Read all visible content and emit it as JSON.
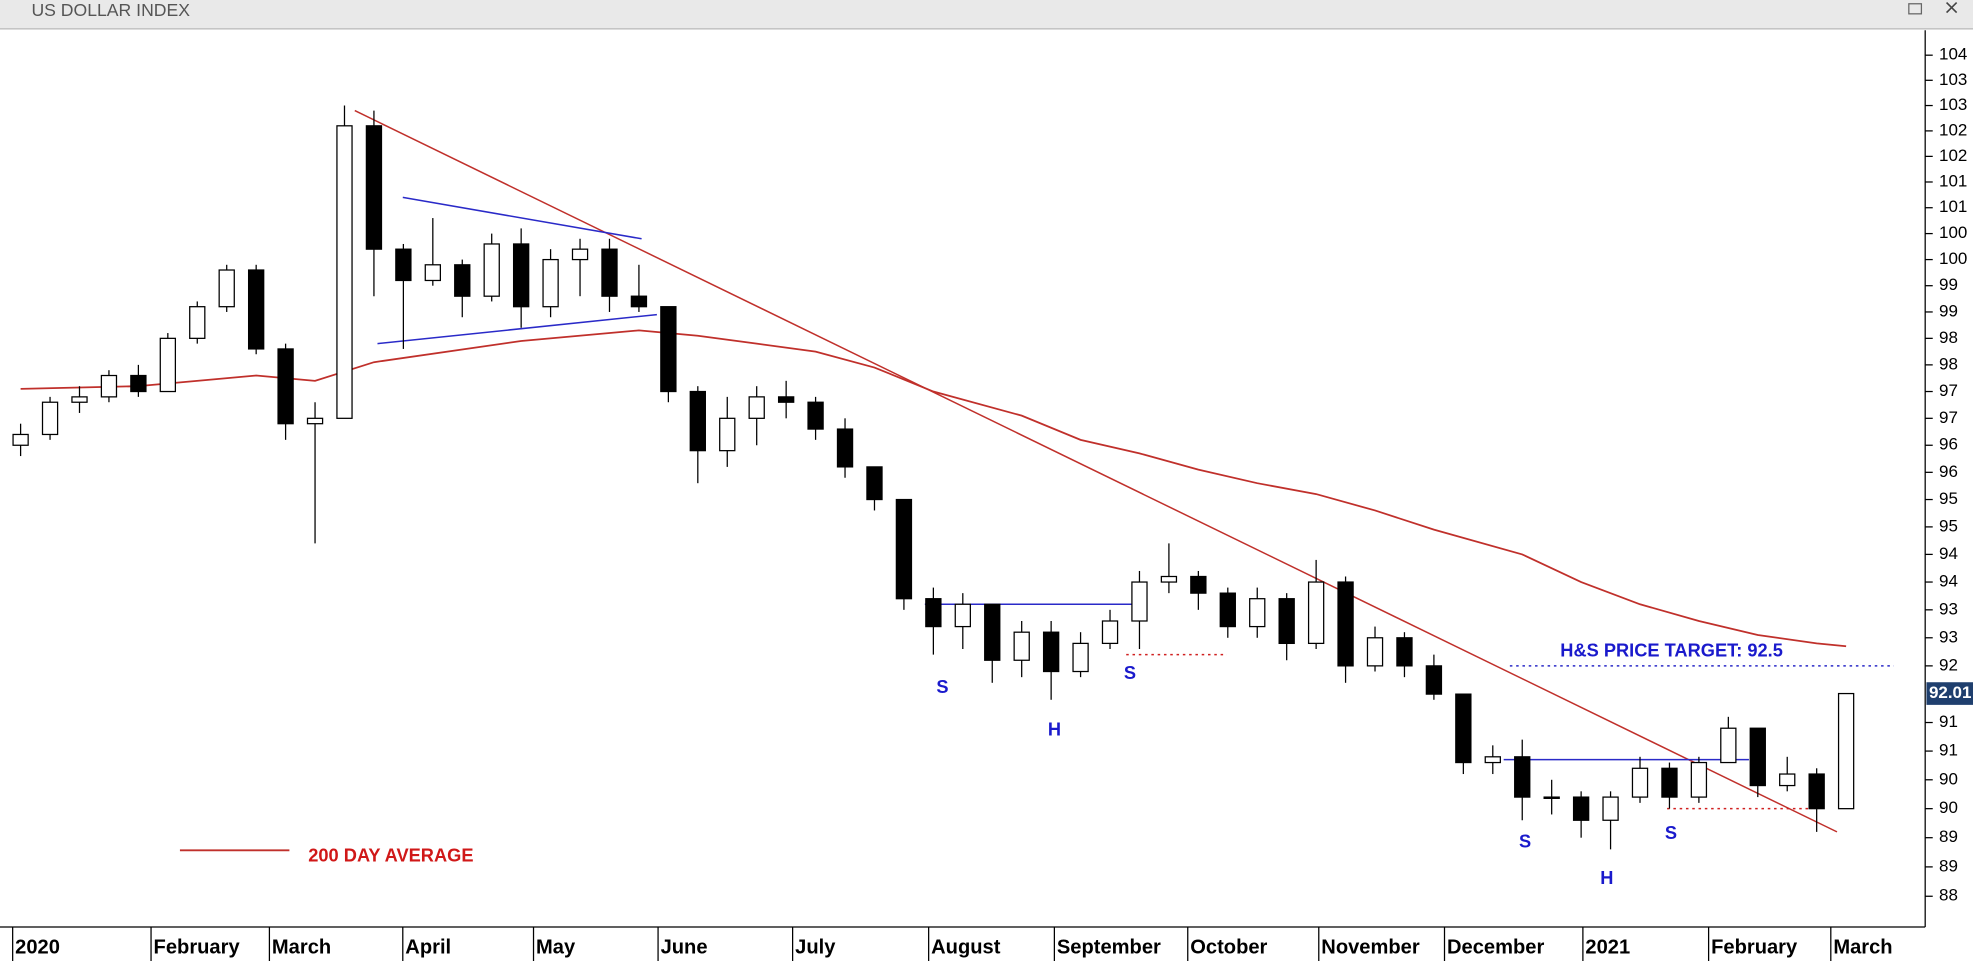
{
  "chart_data": {
    "type": "candlestick",
    "title": "US DOLLAR INDEX",
    "log_scale": true,
    "ylim": [
      88,
      104.5
    ],
    "yticks": [
      104,
      {
        "value": 103.5,
        "label": "103"
      },
      103,
      {
        "value": 102.5,
        "label": "102"
      },
      102,
      {
        "value": 101.5,
        "label": "101"
      },
      101,
      {
        "value": 100.5,
        "label": "100"
      },
      100,
      {
        "value": 99.5,
        "label": "99"
      },
      99,
      {
        "value": 98.5,
        "label": "98"
      },
      98,
      {
        "value": 97.5,
        "label": "97"
      },
      97,
      {
        "value": 96.5,
        "label": "96"
      },
      96,
      {
        "value": 95.5,
        "label": "95"
      },
      95,
      {
        "value": 94.5,
        "label": "94"
      },
      94,
      {
        "value": 93.5,
        "label": "93"
      },
      93,
      {
        "value": 92.5,
        "label": "92"
      },
      {
        "value": 91.5,
        "label": "91"
      },
      91,
      {
        "value": 90.5,
        "label": "90"
      },
      90,
      {
        "value": 89.5,
        "label": "89"
      },
      89,
      {
        "value": 88.5,
        "label": "88"
      }
    ],
    "xlim": [
      -0.7,
      64.6
    ],
    "xticks": [
      {
        "value": -0.27,
        "label": "2020"
      },
      {
        "value": 4.43,
        "label": "February"
      },
      {
        "value": 8.45,
        "label": "March"
      },
      {
        "value": 12.98,
        "label": "April"
      },
      {
        "value": 17.42,
        "label": "May"
      },
      {
        "value": 21.65,
        "label": "June"
      },
      {
        "value": 26.22,
        "label": "July"
      },
      {
        "value": 30.84,
        "label": "August"
      },
      {
        "value": 35.11,
        "label": "September"
      },
      {
        "value": 39.64,
        "label": "October"
      },
      {
        "value": 44.09,
        "label": "November"
      },
      {
        "value": 48.36,
        "label": "December"
      },
      {
        "value": 53.06,
        "label": "2021"
      },
      {
        "value": 57.33,
        "label": "February"
      },
      {
        "value": 61.48,
        "label": "March"
      }
    ],
    "candles": [
      [
        96.5,
        96.9,
        96.3,
        96.7
      ],
      [
        96.7,
        97.4,
        96.6,
        97.3
      ],
      [
        97.3,
        97.6,
        97.1,
        97.4
      ],
      [
        97.4,
        97.9,
        97.3,
        97.8
      ],
      [
        97.8,
        98.0,
        97.4,
        97.5
      ],
      [
        97.5,
        98.6,
        97.5,
        98.5
      ],
      [
        98.5,
        99.2,
        98.4,
        99.1
      ],
      [
        99.1,
        99.9,
        99.0,
        99.8
      ],
      [
        99.8,
        99.9,
        98.2,
        98.3
      ],
      [
        98.3,
        98.4,
        96.6,
        96.9
      ],
      [
        96.9,
        97.3,
        94.7,
        97.0
      ],
      [
        97.0,
        103.0,
        97.0,
        102.6
      ],
      [
        102.6,
        102.9,
        99.3,
        100.2
      ],
      [
        100.2,
        100.3,
        98.3,
        99.6
      ],
      [
        99.6,
        100.8,
        99.5,
        99.9
      ],
      [
        99.9,
        100.0,
        98.9,
        99.3
      ],
      [
        99.3,
        100.5,
        99.2,
        100.3
      ],
      [
        100.3,
        100.6,
        98.7,
        99.1
      ],
      [
        99.1,
        100.2,
        98.9,
        100.0
      ],
      [
        100.0,
        100.4,
        99.3,
        100.2
      ],
      [
        100.2,
        100.4,
        99.0,
        99.3
      ],
      [
        99.3,
        99.9,
        99.0,
        99.1
      ],
      [
        99.1,
        99.1,
        97.3,
        97.5
      ],
      [
        97.5,
        97.6,
        95.8,
        96.4
      ],
      [
        96.4,
        97.4,
        96.1,
        97.0
      ],
      [
        97.0,
        97.6,
        96.5,
        97.4
      ],
      [
        97.4,
        97.7,
        97.0,
        97.3
      ],
      [
        97.3,
        97.4,
        96.6,
        96.8
      ],
      [
        96.8,
        97.0,
        95.9,
        96.1
      ],
      [
        96.1,
        96.1,
        95.3,
        95.5
      ],
      [
        95.5,
        95.5,
        93.5,
        93.7
      ],
      [
        93.7,
        93.9,
        92.7,
        93.2
      ],
      [
        93.2,
        93.8,
        92.8,
        93.6
      ],
      [
        93.6,
        93.6,
        92.2,
        92.6
      ],
      [
        92.6,
        93.3,
        92.3,
        93.1
      ],
      [
        93.1,
        93.3,
        91.9,
        92.4
      ],
      [
        92.4,
        93.1,
        92.3,
        92.9
      ],
      [
        92.9,
        93.5,
        92.8,
        93.3
      ],
      [
        93.3,
        94.2,
        92.8,
        94.0
      ],
      [
        94.0,
        94.7,
        93.8,
        94.1
      ],
      [
        94.1,
        94.2,
        93.5,
        93.8
      ],
      [
        93.8,
        93.9,
        93.0,
        93.2
      ],
      [
        93.2,
        93.9,
        93.0,
        93.7
      ],
      [
        93.7,
        93.8,
        92.6,
        92.9
      ],
      [
        92.9,
        94.4,
        92.8,
        94.0
      ],
      [
        94.0,
        94.1,
        92.2,
        92.5
      ],
      [
        92.5,
        93.2,
        92.4,
        93.0
      ],
      [
        93.0,
        93.1,
        92.3,
        92.5
      ],
      [
        92.5,
        92.7,
        91.9,
        92.0
      ],
      [
        92.0,
        92.0,
        90.6,
        90.8
      ],
      [
        90.8,
        91.1,
        90.6,
        90.9
      ],
      [
        90.9,
        91.2,
        89.8,
        90.2
      ],
      [
        90.2,
        90.5,
        89.9,
        90.2
      ],
      [
        90.2,
        90.3,
        89.5,
        89.8
      ],
      [
        89.8,
        90.3,
        89.3,
        90.2
      ],
      [
        90.2,
        90.9,
        90.1,
        90.7
      ],
      [
        90.7,
        90.8,
        90.0,
        90.2
      ],
      [
        90.2,
        90.9,
        90.1,
        90.8
      ],
      [
        90.8,
        91.6,
        90.8,
        91.4
      ],
      [
        91.4,
        91.4,
        90.2,
        90.4
      ],
      [
        90.4,
        90.9,
        90.3,
        90.6
      ],
      [
        90.6,
        90.7,
        89.6,
        90.0
      ],
      [
        90.0,
        92.01,
        90.0,
        92.01
      ]
    ],
    "moving_average": {
      "name": "200 DAY AVERAGE",
      "color": "#c0302b",
      "x": [
        0,
        4,
        8,
        10,
        12,
        17,
        21,
        23,
        25,
        27,
        29,
        31,
        34,
        36,
        38,
        40,
        42,
        44,
        46,
        48,
        51,
        53,
        55,
        57,
        59,
        61,
        62
      ],
      "values": [
        97.55,
        97.6,
        97.8,
        97.7,
        98.05,
        98.45,
        98.65,
        98.55,
        98.4,
        98.25,
        97.95,
        97.5,
        97.05,
        96.6,
        96.35,
        96.05,
        95.8,
        95.6,
        95.3,
        94.95,
        94.5,
        94.0,
        93.6,
        93.3,
        93.05,
        92.9,
        92.85
      ]
    },
    "trendlines": [
      {
        "color": "#c0302b",
        "style": "solid",
        "x": [
          11.35,
          61.69
        ],
        "values": [
          102.9,
          89.6
        ]
      },
      {
        "color": "#2a2ac8",
        "style": "solid",
        "x": [
          12.98,
          21.09
        ],
        "values": [
          101.2,
          100.4
        ]
      },
      {
        "color": "#2a2ac8",
        "style": "solid",
        "x": [
          12.12,
          21.61
        ],
        "values": [
          98.4,
          98.95
        ]
      },
      {
        "color": "#2a2ac8",
        "style": "solid",
        "x": [
          30.71,
          38.27
        ],
        "values": [
          93.6,
          93.6
        ]
      },
      {
        "color": "#2a2ac8",
        "style": "solid",
        "x": [
          50.37,
          58.7
        ],
        "values": [
          90.85,
          90.85
        ]
      },
      {
        "color": "#d02020",
        "style": "dotted",
        "x": [
          37.55,
          40.97
        ],
        "values": [
          92.7,
          92.7
        ]
      },
      {
        "color": "#d02020",
        "style": "dotted",
        "x": [
          55.92,
          60.84
        ],
        "values": [
          90.0,
          90.0
        ]
      },
      {
        "color": "#2a2ac8",
        "style": "dotted",
        "x": [
          50.58,
          63.62
        ],
        "values": [
          92.5,
          92.5
        ]
      }
    ],
    "annotations": [
      "S",
      "H",
      "S",
      "S",
      "H",
      "S",
      "H&S PRICE TARGET: 92.5"
    ]
  }
}
